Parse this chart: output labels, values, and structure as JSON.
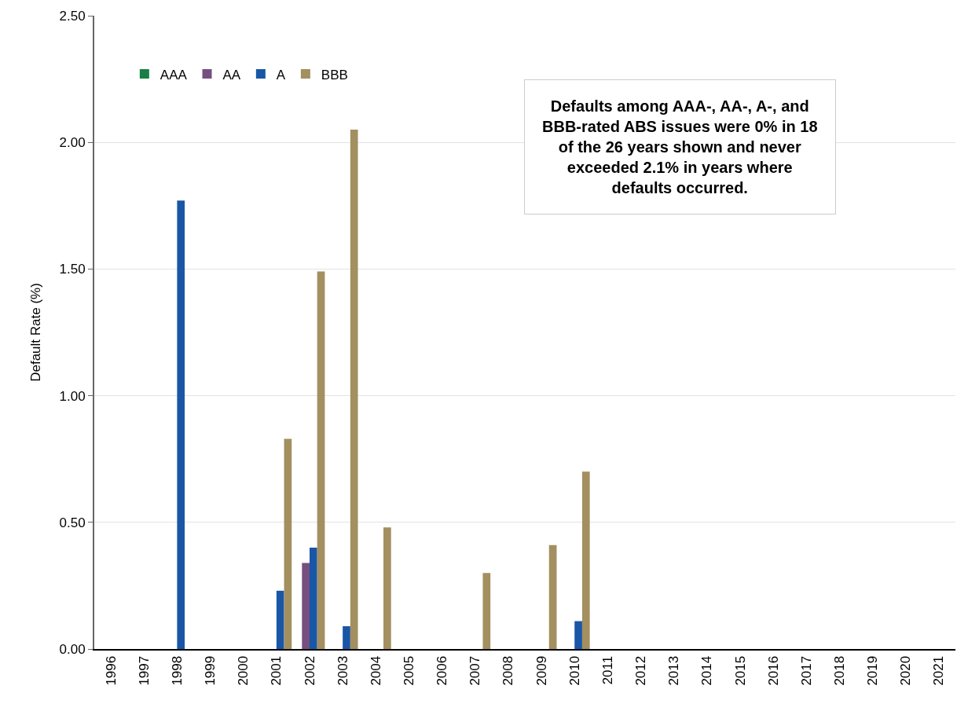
{
  "chart_data": {
    "type": "bar",
    "ylabel": "Default Rate (%)",
    "categories": [
      "1996",
      "1997",
      "1998",
      "1999",
      "2000",
      "2001",
      "2002",
      "2003",
      "2004",
      "2005",
      "2006",
      "2007",
      "2008",
      "2009",
      "2010",
      "2011",
      "2012",
      "2013",
      "2014",
      "2015",
      "2016",
      "2017",
      "2018",
      "2019",
      "2020",
      "2021"
    ],
    "series": [
      {
        "name": "AAA",
        "color": "#1a7f45",
        "values": [
          0,
          0,
          0,
          0,
          0,
          0,
          0,
          0,
          0,
          0,
          0,
          0,
          0,
          0,
          0,
          0,
          0,
          0,
          0,
          0,
          0,
          0,
          0,
          0,
          0,
          0
        ]
      },
      {
        "name": "AA",
        "color": "#764f80",
        "values": [
          0,
          0,
          0,
          0,
          0,
          0,
          0.34,
          0,
          0,
          0,
          0,
          0,
          0,
          0,
          0,
          0,
          0,
          0,
          0,
          0,
          0,
          0,
          0,
          0,
          0,
          0
        ]
      },
      {
        "name": "A",
        "color": "#1a56a6",
        "values": [
          0,
          0,
          1.77,
          0,
          0,
          0.23,
          0.4,
          0.09,
          0,
          0,
          0,
          0,
          0,
          0,
          0.11,
          0,
          0,
          0,
          0,
          0,
          0,
          0,
          0,
          0,
          0,
          0
        ]
      },
      {
        "name": "BBB",
        "color": "#a38f5f",
        "values": [
          0,
          0,
          0,
          0,
          0,
          0.83,
          1.49,
          2.05,
          0.48,
          0,
          0,
          0.3,
          0,
          0.41,
          0.7,
          0,
          0,
          0,
          0,
          0,
          0,
          0,
          0,
          0,
          0,
          0
        ]
      }
    ],
    "ylim": [
      0,
      2.5
    ],
    "yticks": [
      {
        "value": 0,
        "label": "0.00"
      },
      {
        "value": 0.5,
        "label": "0.50"
      },
      {
        "value": 1,
        "label": "1.00"
      },
      {
        "value": 1.5,
        "label": "1.50"
      },
      {
        "value": 2,
        "label": "2.00"
      },
      {
        "value": 2.5,
        "label": "2.50"
      }
    ],
    "grid": "y",
    "legend": "top left",
    "annotations": [
      "Defaults among AAA-, AA-, A-, and BBB-rated ABS issues were 0% in 18 of the 26 years shown and never exceeded 2.1% in years where defaults occurred."
    ]
  }
}
